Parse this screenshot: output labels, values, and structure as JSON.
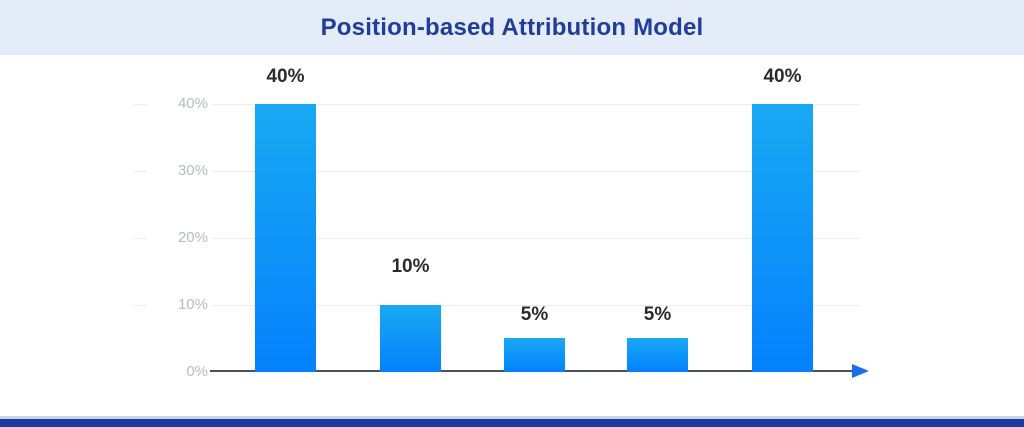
{
  "header": {
    "title": "Position-based Attribution Model"
  },
  "chart_data": {
    "type": "bar",
    "title": "Position-based Attribution Model",
    "values": [
      40,
      10,
      5,
      5,
      40
    ],
    "bar_labels": [
      "40%",
      "10%",
      "5%",
      "5%",
      "40%"
    ],
    "y_axis": {
      "tick_labels": [
        "40%",
        "30%",
        "20%",
        "10%",
        "0%"
      ],
      "tick_values": [
        40,
        30,
        20,
        10,
        0
      ],
      "ylim": [
        0,
        44
      ]
    },
    "xlabel": "",
    "ylabel": "",
    "grid": true,
    "legend": false,
    "bar_gradient_top": "#18a9f3",
    "bar_gradient_bottom": "#0581fc"
  },
  "colors": {
    "header_bg": "#e4ecf9",
    "title": "#1f3d99",
    "grid": "#ececec",
    "tick_label": "#b5bbc2",
    "value_label": "#2b2b2b",
    "axis": "#47525f",
    "arrow": "#1b6fe4",
    "bar_top": "#18a9f3",
    "bar_bottom": "#0581fc",
    "footer_line": "#c9d5ea",
    "footer_band": "#1e3a9e"
  }
}
